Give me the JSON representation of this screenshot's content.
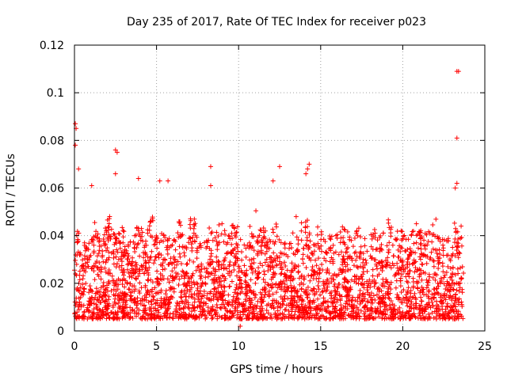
{
  "chart_data": {
    "type": "scatter",
    "title": "Day 235 of 2017, Rate Of TEC Index for receiver p023",
    "xlabel": "GPS time / hours",
    "ylabel": "ROTI / TECUs",
    "xlim": [
      0,
      25
    ],
    "ylim": [
      0,
      0.12
    ],
    "xticks": [
      0,
      5,
      10,
      15,
      20,
      25
    ],
    "yticks": [
      0,
      0.02,
      0.04,
      0.06,
      0.08,
      0.1,
      0.12
    ],
    "xtick_labels": [
      "0",
      "5",
      "10",
      "15",
      "20",
      "25"
    ],
    "ytick_labels": [
      "0",
      "0.02",
      "0.04",
      "0.06",
      "0.08",
      "0.1",
      "0.12"
    ],
    "grid": true,
    "marker": "plus",
    "color": "#ff0000",
    "series": [
      {
        "name": "ROTI",
        "notable_points": [
          {
            "x": 0.05,
            "y": 0.087
          },
          {
            "x": 0.1,
            "y": 0.085
          },
          {
            "x": 0.05,
            "y": 0.078
          },
          {
            "x": 0.25,
            "y": 0.068
          },
          {
            "x": 1.05,
            "y": 0.061
          },
          {
            "x": 2.5,
            "y": 0.076
          },
          {
            "x": 2.6,
            "y": 0.075
          },
          {
            "x": 2.5,
            "y": 0.066
          },
          {
            "x": 3.9,
            "y": 0.064
          },
          {
            "x": 5.2,
            "y": 0.063
          },
          {
            "x": 5.7,
            "y": 0.063
          },
          {
            "x": 8.3,
            "y": 0.069
          },
          {
            "x": 8.3,
            "y": 0.061
          },
          {
            "x": 12.1,
            "y": 0.063
          },
          {
            "x": 12.5,
            "y": 0.069
          },
          {
            "x": 14.3,
            "y": 0.07
          },
          {
            "x": 14.2,
            "y": 0.068
          },
          {
            "x": 14.1,
            "y": 0.066
          },
          {
            "x": 10.1,
            "y": 0.002
          },
          {
            "x": 23.3,
            "y": 0.109
          },
          {
            "x": 23.4,
            "y": 0.109
          },
          {
            "x": 23.3,
            "y": 0.081
          },
          {
            "x": 23.3,
            "y": 0.062
          },
          {
            "x": 23.2,
            "y": 0.06
          }
        ],
        "bulk": {
          "x_range": [
            0,
            23.7
          ],
          "typical_range": [
            0.005,
            0.04
          ],
          "median": 0.015
        }
      }
    ]
  }
}
